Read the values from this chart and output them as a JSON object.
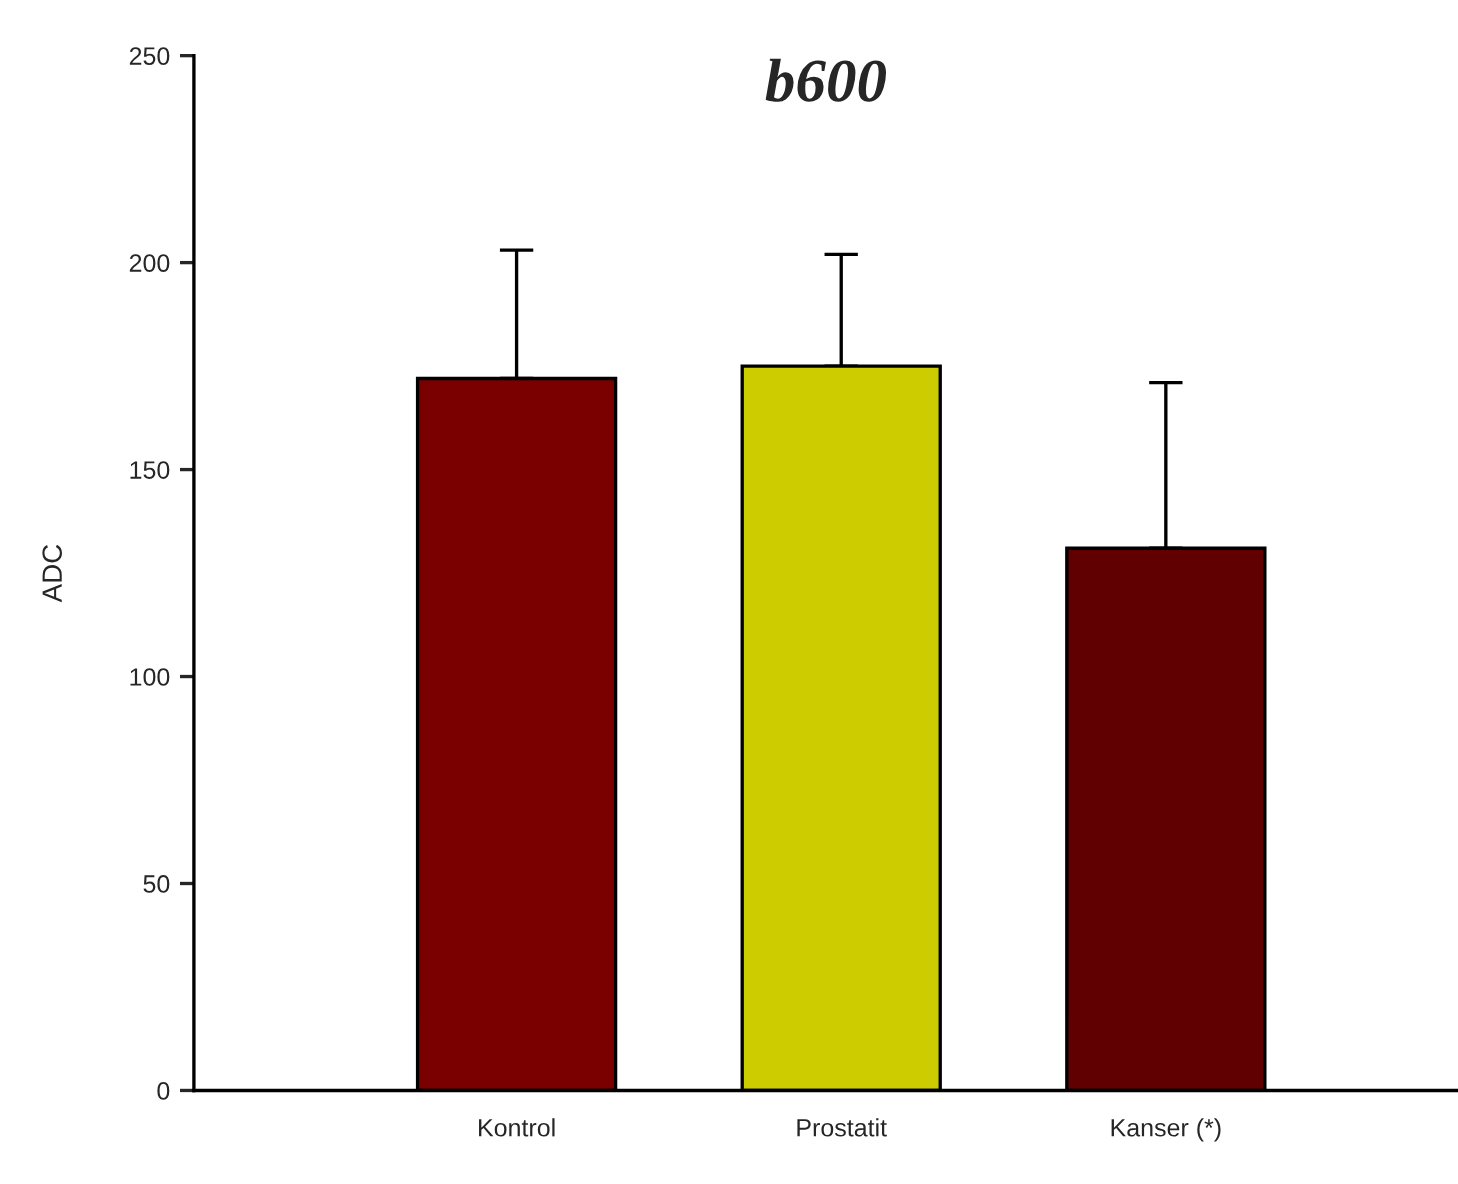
{
  "chart_data": {
    "type": "bar",
    "title": "b600",
    "ylabel": "ADC",
    "categories": [
      "Kontrol",
      "Prostatit",
      "Kanser (*)"
    ],
    "values": [
      172,
      175,
      131
    ],
    "colors": [
      "#7a0000",
      "#cccc00",
      "#600000"
    ],
    "errors": [
      [
        172,
        203
      ],
      [
        175,
        202
      ],
      [
        131,
        171
      ]
    ],
    "ylim": [
      0,
      250
    ],
    "yticks": [
      0,
      50,
      100,
      150,
      200,
      250
    ],
    "grid": false,
    "legend": false
  }
}
